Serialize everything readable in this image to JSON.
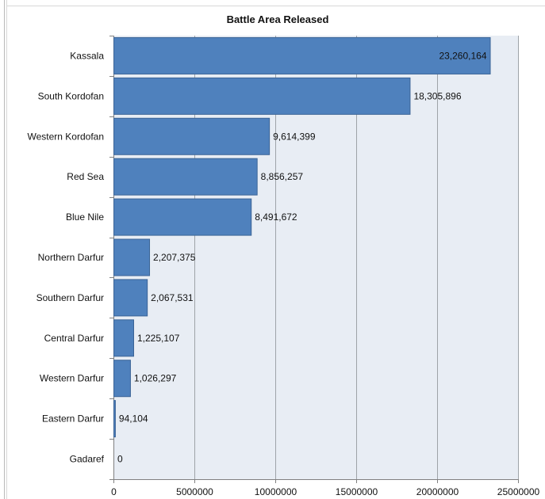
{
  "chart_data": {
    "type": "bar",
    "orientation": "horizontal",
    "title": "Battle Area Released",
    "categories": [
      "Kassala",
      "South Kordofan",
      "Western Kordofan",
      "Red Sea",
      "Blue Nile",
      "Northern Darfur",
      "Southern Darfur",
      "Central Darfur",
      "Western Darfur",
      "Eastern Darfur",
      "Gadaref"
    ],
    "values": [
      23260164,
      18305896,
      9614399,
      8856257,
      8491672,
      2207375,
      2067531,
      1225107,
      1026297,
      94104,
      0
    ],
    "data_labels": [
      "23,260,164",
      "18,305,896",
      "9,614,399",
      "8,856,257",
      "8,491,672",
      "2,207,375",
      "2,067,531",
      "1,225,107",
      "1,026,297",
      "94,104",
      "0"
    ],
    "xlim": [
      0,
      25000000
    ],
    "x_ticks": [
      "0",
      "5000000",
      "10000000",
      "15000000",
      "20000000",
      "25000000"
    ],
    "grid": true,
    "colors": {
      "bar": "#4f81bd",
      "bar_edge": "#3b6496",
      "plot_bg": "#e8edf4",
      "grid": "#9ea3a8"
    }
  }
}
